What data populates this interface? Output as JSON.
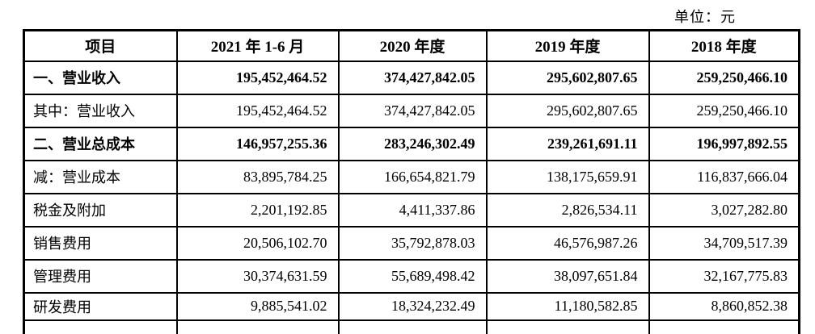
{
  "page": {
    "unit_label": "单位：元"
  },
  "table": {
    "headers": [
      "项目",
      "2021 年 1-6 月",
      "2020 年度",
      "2019 年度",
      "2018 年度"
    ],
    "rows": [
      {
        "label": "一、营业收入",
        "bold": true,
        "values": [
          "195,452,464.52",
          "374,427,842.05",
          "295,602,807.65",
          "259,250,466.10"
        ]
      },
      {
        "label": "其中：营业收入",
        "bold": false,
        "values": [
          "195,452,464.52",
          "374,427,842.05",
          "295,602,807.65",
          "259,250,466.10"
        ]
      },
      {
        "label": "二、营业总成本",
        "bold": true,
        "values": [
          "146,957,255.36",
          "283,246,302.49",
          "239,261,691.11",
          "196,997,892.55"
        ]
      },
      {
        "label": "减：营业成本",
        "bold": false,
        "bold_cells": [
          2
        ],
        "values": [
          "83,895,784.25",
          "166,654,821.79",
          "138,175,659.91",
          "116,837,666.04"
        ]
      },
      {
        "label": "税金及附加",
        "bold": false,
        "values": [
          "2,201,192.85",
          "4,411,337.86",
          "2,826,534.11",
          "3,027,282.80"
        ]
      },
      {
        "label": "销售费用",
        "bold": false,
        "values": [
          "20,506,102.70",
          "35,792,878.03",
          "46,576,987.26",
          "34,709,517.39"
        ]
      },
      {
        "label": "管理费用",
        "bold": false,
        "values": [
          "30,374,631.59",
          "55,689,498.42",
          "38,097,651.84",
          "32,167,775.83"
        ]
      },
      {
        "label": "研发费用",
        "bold": false,
        "values": [
          "9,885,541.02",
          "18,324,232.49",
          "11,180,582.85",
          "8,860,852.38"
        ]
      }
    ]
  }
}
